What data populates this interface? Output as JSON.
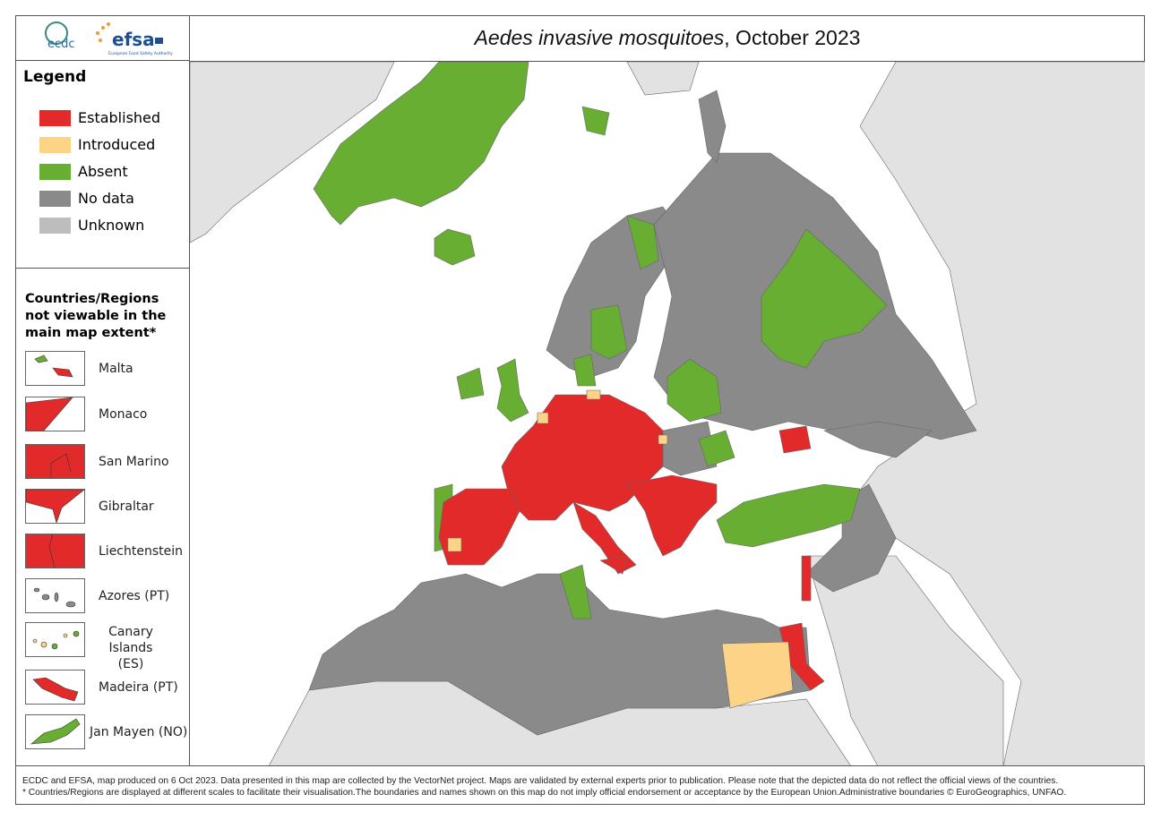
{
  "header": {
    "title_italic": "Aedes invasive mosquitoes",
    "title_rest": ", October 2023"
  },
  "logos": {
    "ecdc": "ecdc",
    "efsa": "efsa",
    "efsa_subtitle": "European Food Safety Authority"
  },
  "legend": {
    "title": "Legend",
    "items": [
      {
        "label": "Established",
        "color": "#e32a2a"
      },
      {
        "label": "Introduced",
        "color": "#fdd487"
      },
      {
        "label": "Absent",
        "color": "#67ae33"
      },
      {
        "label": "No data",
        "color": "#8a8a8a"
      },
      {
        "label": "Unknown",
        "color": "#bdbdbd"
      }
    ]
  },
  "insets": {
    "title": "Countries/Regions not viewable in the main map extent*",
    "items": [
      "Malta",
      "Monaco",
      "San Marino",
      "Gibraltar",
      "Liechtenstein",
      "Azores (PT)",
      "Canary Islands (ES)",
      "Madeira (PT)",
      "Jan Mayen (NO)"
    ]
  },
  "footer": {
    "lines": [
      "ECDC and EFSA, map produced on 6 Oct 2023. Data presented in this map are collected by the VectorNet project. Maps are validated by external experts prior to publication. Please note that the depicted data do not reflect the official views of the countries.",
      "* Countries/Regions are displayed at different scales to facilitate their visualisation.The boundaries and names shown on this map do not imply official endorsement or acceptance by the European Union.Administrative boundaries © EuroGeographics, UNFAO."
    ]
  }
}
